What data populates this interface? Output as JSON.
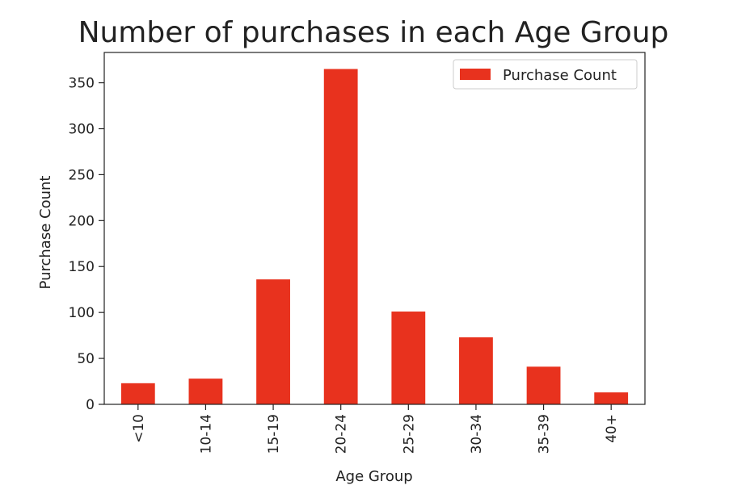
{
  "chart_data": {
    "type": "bar",
    "title": "Number of purchases in each Age Group",
    "xlabel": "Age Group",
    "ylabel": "Purchase Count",
    "categories": [
      "<10",
      "10-14",
      "15-19",
      "20-24",
      "25-29",
      "30-34",
      "35-39",
      "40+"
    ],
    "series": [
      {
        "name": "Purchase Count",
        "values": [
          23,
          28,
          136,
          365,
          101,
          73,
          41,
          13
        ],
        "color": "#e8321e"
      }
    ],
    "ylim": [
      0,
      383
    ],
    "yticks": [
      0,
      50,
      100,
      150,
      200,
      250,
      300,
      350
    ],
    "grid": false,
    "legend_position": "top-right"
  }
}
